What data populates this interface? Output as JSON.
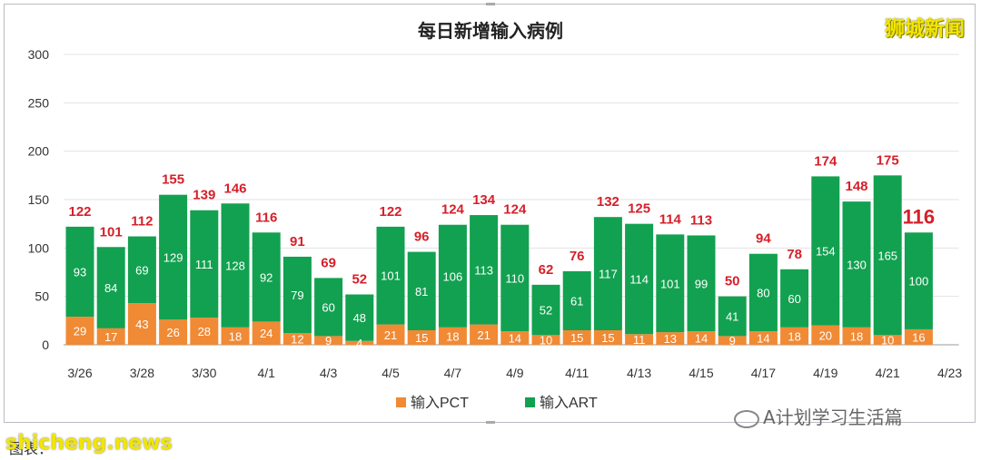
{
  "brand": "狮城新闻",
  "watermark": "A计划学习生活篇",
  "site": "shicheng.news",
  "source_label": "图表：",
  "chart_data": {
    "type": "bar",
    "stacked": true,
    "title": "每日新增输入病例",
    "categories": [
      "3/26",
      "3/27",
      "3/28",
      "3/29",
      "3/30",
      "3/31",
      "4/1",
      "4/2",
      "4/3",
      "4/4",
      "4/5",
      "4/6",
      "4/7",
      "4/8",
      "4/9",
      "4/10",
      "4/11",
      "4/12",
      "4/13",
      "4/14",
      "4/15",
      "4/16",
      "4/17",
      "4/18",
      "4/19",
      "4/20",
      "4/21",
      "4/22"
    ],
    "x_tick_labels": [
      "3/26",
      "3/28",
      "3/30",
      "4/1",
      "4/3",
      "4/5",
      "4/7",
      "4/9",
      "4/11",
      "4/13",
      "4/15",
      "4/17",
      "4/19",
      "4/21",
      "4/23"
    ],
    "series": [
      {
        "name": "输入PCT",
        "color": "#f08a35",
        "values": [
          29,
          17,
          43,
          26,
          28,
          18,
          24,
          12,
          9,
          4,
          21,
          15,
          18,
          21,
          14,
          10,
          15,
          15,
          11,
          13,
          14,
          9,
          14,
          18,
          20,
          18,
          10,
          16
        ]
      },
      {
        "name": "输入ART",
        "color": "#12a150",
        "values": [
          93,
          84,
          69,
          129,
          111,
          128,
          92,
          79,
          60,
          48,
          101,
          81,
          106,
          113,
          110,
          52,
          61,
          117,
          114,
          101,
          99,
          41,
          80,
          60,
          154,
          130,
          165,
          100
        ]
      }
    ],
    "totals": [
      122,
      101,
      112,
      155,
      139,
      146,
      116,
      91,
      69,
      52,
      122,
      96,
      124,
      134,
      124,
      62,
      76,
      132,
      125,
      114,
      113,
      50,
      94,
      78,
      174,
      148,
      175,
      116
    ],
    "total_color": "#d6202a",
    "y_ticks": [
      0,
      50,
      100,
      150,
      200,
      250,
      300
    ],
    "ylim": [
      0,
      300
    ],
    "grid": true,
    "legend_position": "bottom"
  }
}
